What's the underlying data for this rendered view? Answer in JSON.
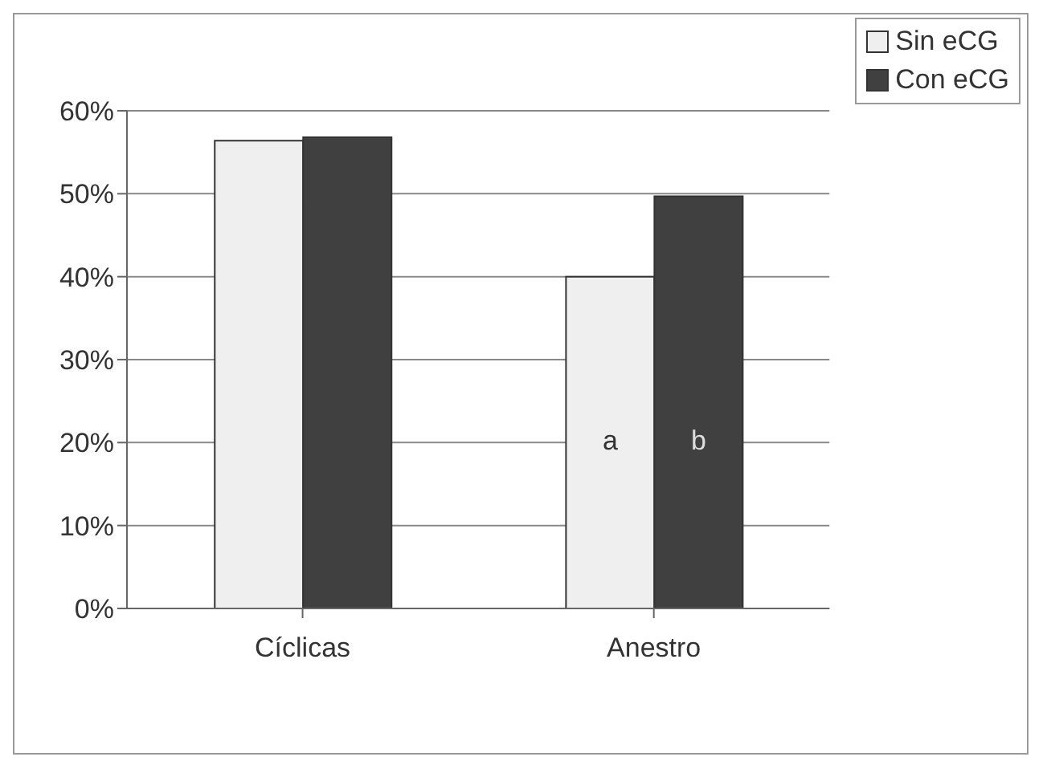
{
  "chart_data": {
    "type": "bar",
    "categories": [
      "Cíclicas",
      "Anestro"
    ],
    "series": [
      {
        "name": "Sin eCG",
        "color": "#efefef",
        "values": [
          56.4,
          40
        ]
      },
      {
        "name": "Con eCG",
        "color": "#404040",
        "values": [
          56.8,
          49.7
        ]
      }
    ],
    "ylim": [
      0,
      60
    ],
    "yticks": [
      {
        "value": 0,
        "label": "0%"
      },
      {
        "value": 10,
        "label": "10%"
      },
      {
        "value": 20,
        "label": "20%"
      },
      {
        "value": 30,
        "label": "30%"
      },
      {
        "value": 40,
        "label": "40%"
      },
      {
        "value": 50,
        "label": "50%"
      },
      {
        "value": 60,
        "label": "60%"
      }
    ],
    "grid": "y",
    "legend": "top right",
    "annotations": [
      {
        "text": "a",
        "x": "Anestro",
        "y": 20
      },
      {
        "text": "b",
        "x": "Anestro",
        "y": 20
      }
    ]
  }
}
